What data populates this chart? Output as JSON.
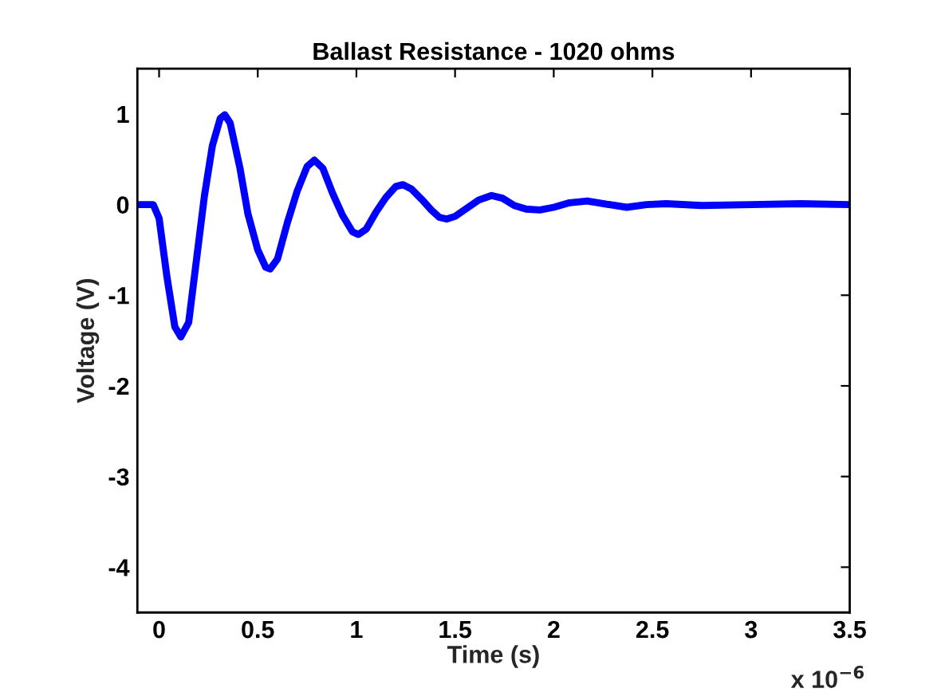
{
  "chart_data": {
    "type": "line",
    "title": "Ballast Resistance - 1020 ohms",
    "xlabel": "Time (s)",
    "ylabel": "Voltage (V)",
    "annotations": [
      "x 10$^{−6}$"
    ],
    "series": [
      {
        "color": "#0000ff",
        "x": [
          -0.11,
          -0.03,
          0.0,
          0.04,
          0.08,
          0.11,
          0.15,
          0.19,
          0.23,
          0.27,
          0.31,
          0.333,
          0.36,
          0.41,
          0.45,
          0.5,
          0.54,
          0.563,
          0.6,
          0.65,
          0.7,
          0.75,
          0.787,
          0.83,
          0.88,
          0.93,
          0.98,
          1.01,
          1.05,
          1.1,
          1.15,
          1.2,
          1.235,
          1.28,
          1.33,
          1.38,
          1.42,
          1.457,
          1.5,
          1.56,
          1.62,
          1.685,
          1.74,
          1.8,
          1.86,
          1.93,
          2.0,
          2.08,
          2.17,
          2.25,
          2.37,
          2.47,
          2.57,
          2.75,
          3.0,
          3.25,
          3.5
        ],
        "values": [
          0,
          0,
          -0.15,
          -0.8,
          -1.35,
          -1.46,
          -1.3,
          -0.6,
          0.1,
          0.65,
          0.95,
          0.99,
          0.9,
          0.4,
          -0.1,
          -0.5,
          -0.69,
          -0.71,
          -0.6,
          -0.2,
          0.15,
          0.42,
          0.49,
          0.4,
          0.12,
          -0.12,
          -0.3,
          -0.33,
          -0.27,
          -0.08,
          0.08,
          0.2,
          0.22,
          0.17,
          0.06,
          -0.06,
          -0.14,
          -0.16,
          -0.13,
          -0.04,
          0.05,
          0.1,
          0.07,
          -0.01,
          -0.05,
          -0.06,
          -0.03,
          0.02,
          0.04,
          0.01,
          -0.03,
          0,
          0.01,
          -0.01,
          0,
          0.01,
          0
        ]
      }
    ],
    "xlim": [
      -0.11,
      3.5
    ],
    "xticks": [
      0,
      0.5,
      1,
      1.5,
      2,
      2.5,
      3,
      3.5
    ],
    "ylim": [
      -4.5,
      1.5
    ],
    "yticks": [
      -4,
      -3,
      -2,
      -1,
      0,
      1
    ],
    "grid": false,
    "legend": false,
    "line_style": "solid",
    "marker": "none"
  }
}
